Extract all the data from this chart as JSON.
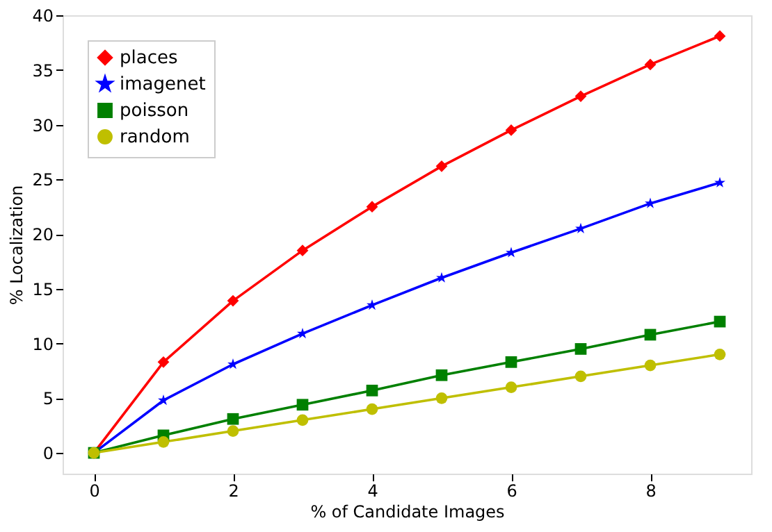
{
  "chart_data": {
    "type": "line",
    "xlabel": "% of Candidate Images",
    "ylabel": "% Localization",
    "x": [
      0,
      1,
      2,
      3,
      4,
      5,
      6,
      7,
      8,
      9
    ],
    "series": [
      {
        "name": "places",
        "color": "#ff0000",
        "marker": "diamond",
        "values": [
          0,
          8.3,
          13.9,
          18.5,
          22.5,
          26.2,
          29.5,
          32.6,
          35.5,
          38.1
        ]
      },
      {
        "name": "imagenet",
        "color": "#0000ff",
        "marker": "star",
        "values": [
          0,
          4.8,
          8.1,
          10.9,
          13.5,
          16.0,
          18.3,
          20.5,
          22.8,
          24.7
        ]
      },
      {
        "name": "poisson",
        "color": "#008000",
        "marker": "square",
        "values": [
          0,
          1.6,
          3.1,
          4.4,
          5.7,
          7.1,
          8.3,
          9.5,
          10.8,
          12.0
        ]
      },
      {
        "name": "random",
        "color": "#bfbf00",
        "marker": "circle",
        "values": [
          0,
          1,
          2,
          3,
          4,
          5,
          6,
          7,
          8,
          9
        ]
      }
    ],
    "xlim": [
      -0.45,
      9.45
    ],
    "ylim": [
      -1.9,
      40
    ],
    "xticks": [
      0,
      2,
      4,
      6,
      8
    ],
    "yticks": [
      0,
      5,
      10,
      15,
      20,
      25,
      30,
      35,
      40
    ],
    "grid": false,
    "legend": "top left",
    "line_style": "solid"
  }
}
